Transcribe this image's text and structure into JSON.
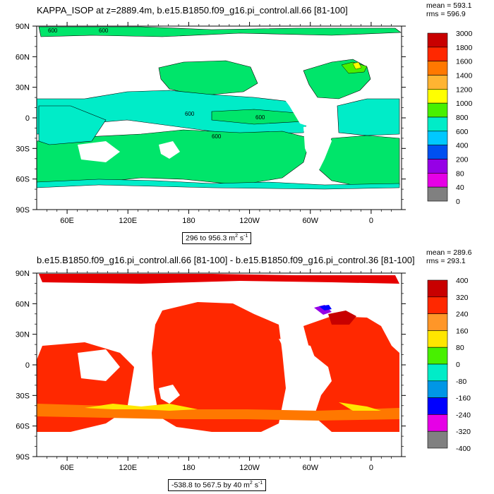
{
  "panels": [
    {
      "title": "KAPPA_ISOP at z=2889.4m, b.e15.B1850.f09_g16.pi_control.all.66 [81-100]",
      "stats": {
        "mean": "mean = 593.1",
        "rms": "rms = 596.9"
      },
      "range_label": {
        "text": "296 to 956.3 m",
        "sup": "2",
        "unit": " s",
        "unit_sup": "-1"
      },
      "colorbar": {
        "labels": [
          "3000",
          "1800",
          "1600",
          "1400",
          "1200",
          "1000",
          "800",
          "600",
          "400",
          "200",
          "80",
          "40",
          "0"
        ],
        "colors": [
          "#c80000",
          "#e60000",
          "#ff2800",
          "#ff7800",
          "#ff9628",
          "#ffb432",
          "#ffe600",
          "#ffff00",
          "#48f000",
          "#00e56a",
          "#00ecc8",
          "#00c8ff",
          "#0096e6",
          "#0050f0",
          "#0000ff",
          "#9600e6",
          "#e600e6",
          "#c8c8c8",
          "#808080"
        ]
      },
      "contour_labels": [
        "600",
        "600",
        "600",
        "600",
        "600"
      ]
    },
    {
      "title": "b.e15.B1850.f09_g16.pi_control.all.66 [81-100] - b.e15.B1850.f09_g16.pi_control.36 [81-100]",
      "stats": {
        "mean": "mean = 289.6",
        "rms": "rms = 293.1"
      },
      "range_label": {
        "text": "-538.8 to 567.5 by 40 m",
        "sup": "2",
        "unit": " s",
        "unit_sup": "-1"
      },
      "colorbar": {
        "labels": [
          "400",
          "320",
          "240",
          "160",
          "80",
          "0",
          "-80",
          "-160",
          "-240",
          "-320",
          "-400"
        ],
        "colors": [
          "#c80000",
          "#e60000",
          "#ff2800",
          "#ff7800",
          "#ff9628",
          "#ffb432",
          "#ffe600",
          "#ffff00",
          "#48f000",
          "#00e56a",
          "#00ecc8",
          "#00c8ff",
          "#0096e6",
          "#0050f0",
          "#0000ff",
          "#9600e6",
          "#e600e6",
          "#c8c8c8",
          "#808080"
        ]
      }
    }
  ],
  "chart_data": [
    {
      "type": "heatmap",
      "title": "KAPPA_ISOP at z=2889.4m, b.e15.B1850.f09_g16.pi_control.all.66 [81-100]",
      "x_ticks": [
        "60E",
        "120E",
        "180",
        "120W",
        "60W",
        "0"
      ],
      "y_ticks": [
        "90N",
        "60N",
        "30N",
        "0",
        "30S",
        "60S",
        "90S"
      ],
      "xlim": [
        30,
        390
      ],
      "ylim": [
        -90,
        90
      ],
      "value_range": [
        296,
        956.3
      ],
      "units": "m2 s-1",
      "mean": 593.1,
      "rms": 596.9,
      "colorbar_levels": [
        0,
        40,
        80,
        200,
        400,
        600,
        800,
        1000,
        1200,
        1400,
        1600,
        1800,
        3000
      ]
    },
    {
      "type": "heatmap",
      "title": "b.e15.B1850.f09_g16.pi_control.all.66 [81-100] - b.e15.B1850.f09_g16.pi_control.36 [81-100]",
      "x_ticks": [
        "60E",
        "120E",
        "180",
        "120W",
        "60W",
        "0"
      ],
      "y_ticks": [
        "90N",
        "60N",
        "30N",
        "0",
        "30S",
        "60S",
        "90S"
      ],
      "xlim": [
        30,
        390
      ],
      "ylim": [
        -90,
        90
      ],
      "value_range": [
        -538.8,
        567.5
      ],
      "contour_interval": 40,
      "units": "m2 s-1",
      "mean": 289.6,
      "rms": 293.1,
      "colorbar_levels": [
        -400,
        -320,
        -240,
        -160,
        -80,
        0,
        80,
        160,
        240,
        320,
        400
      ]
    }
  ]
}
